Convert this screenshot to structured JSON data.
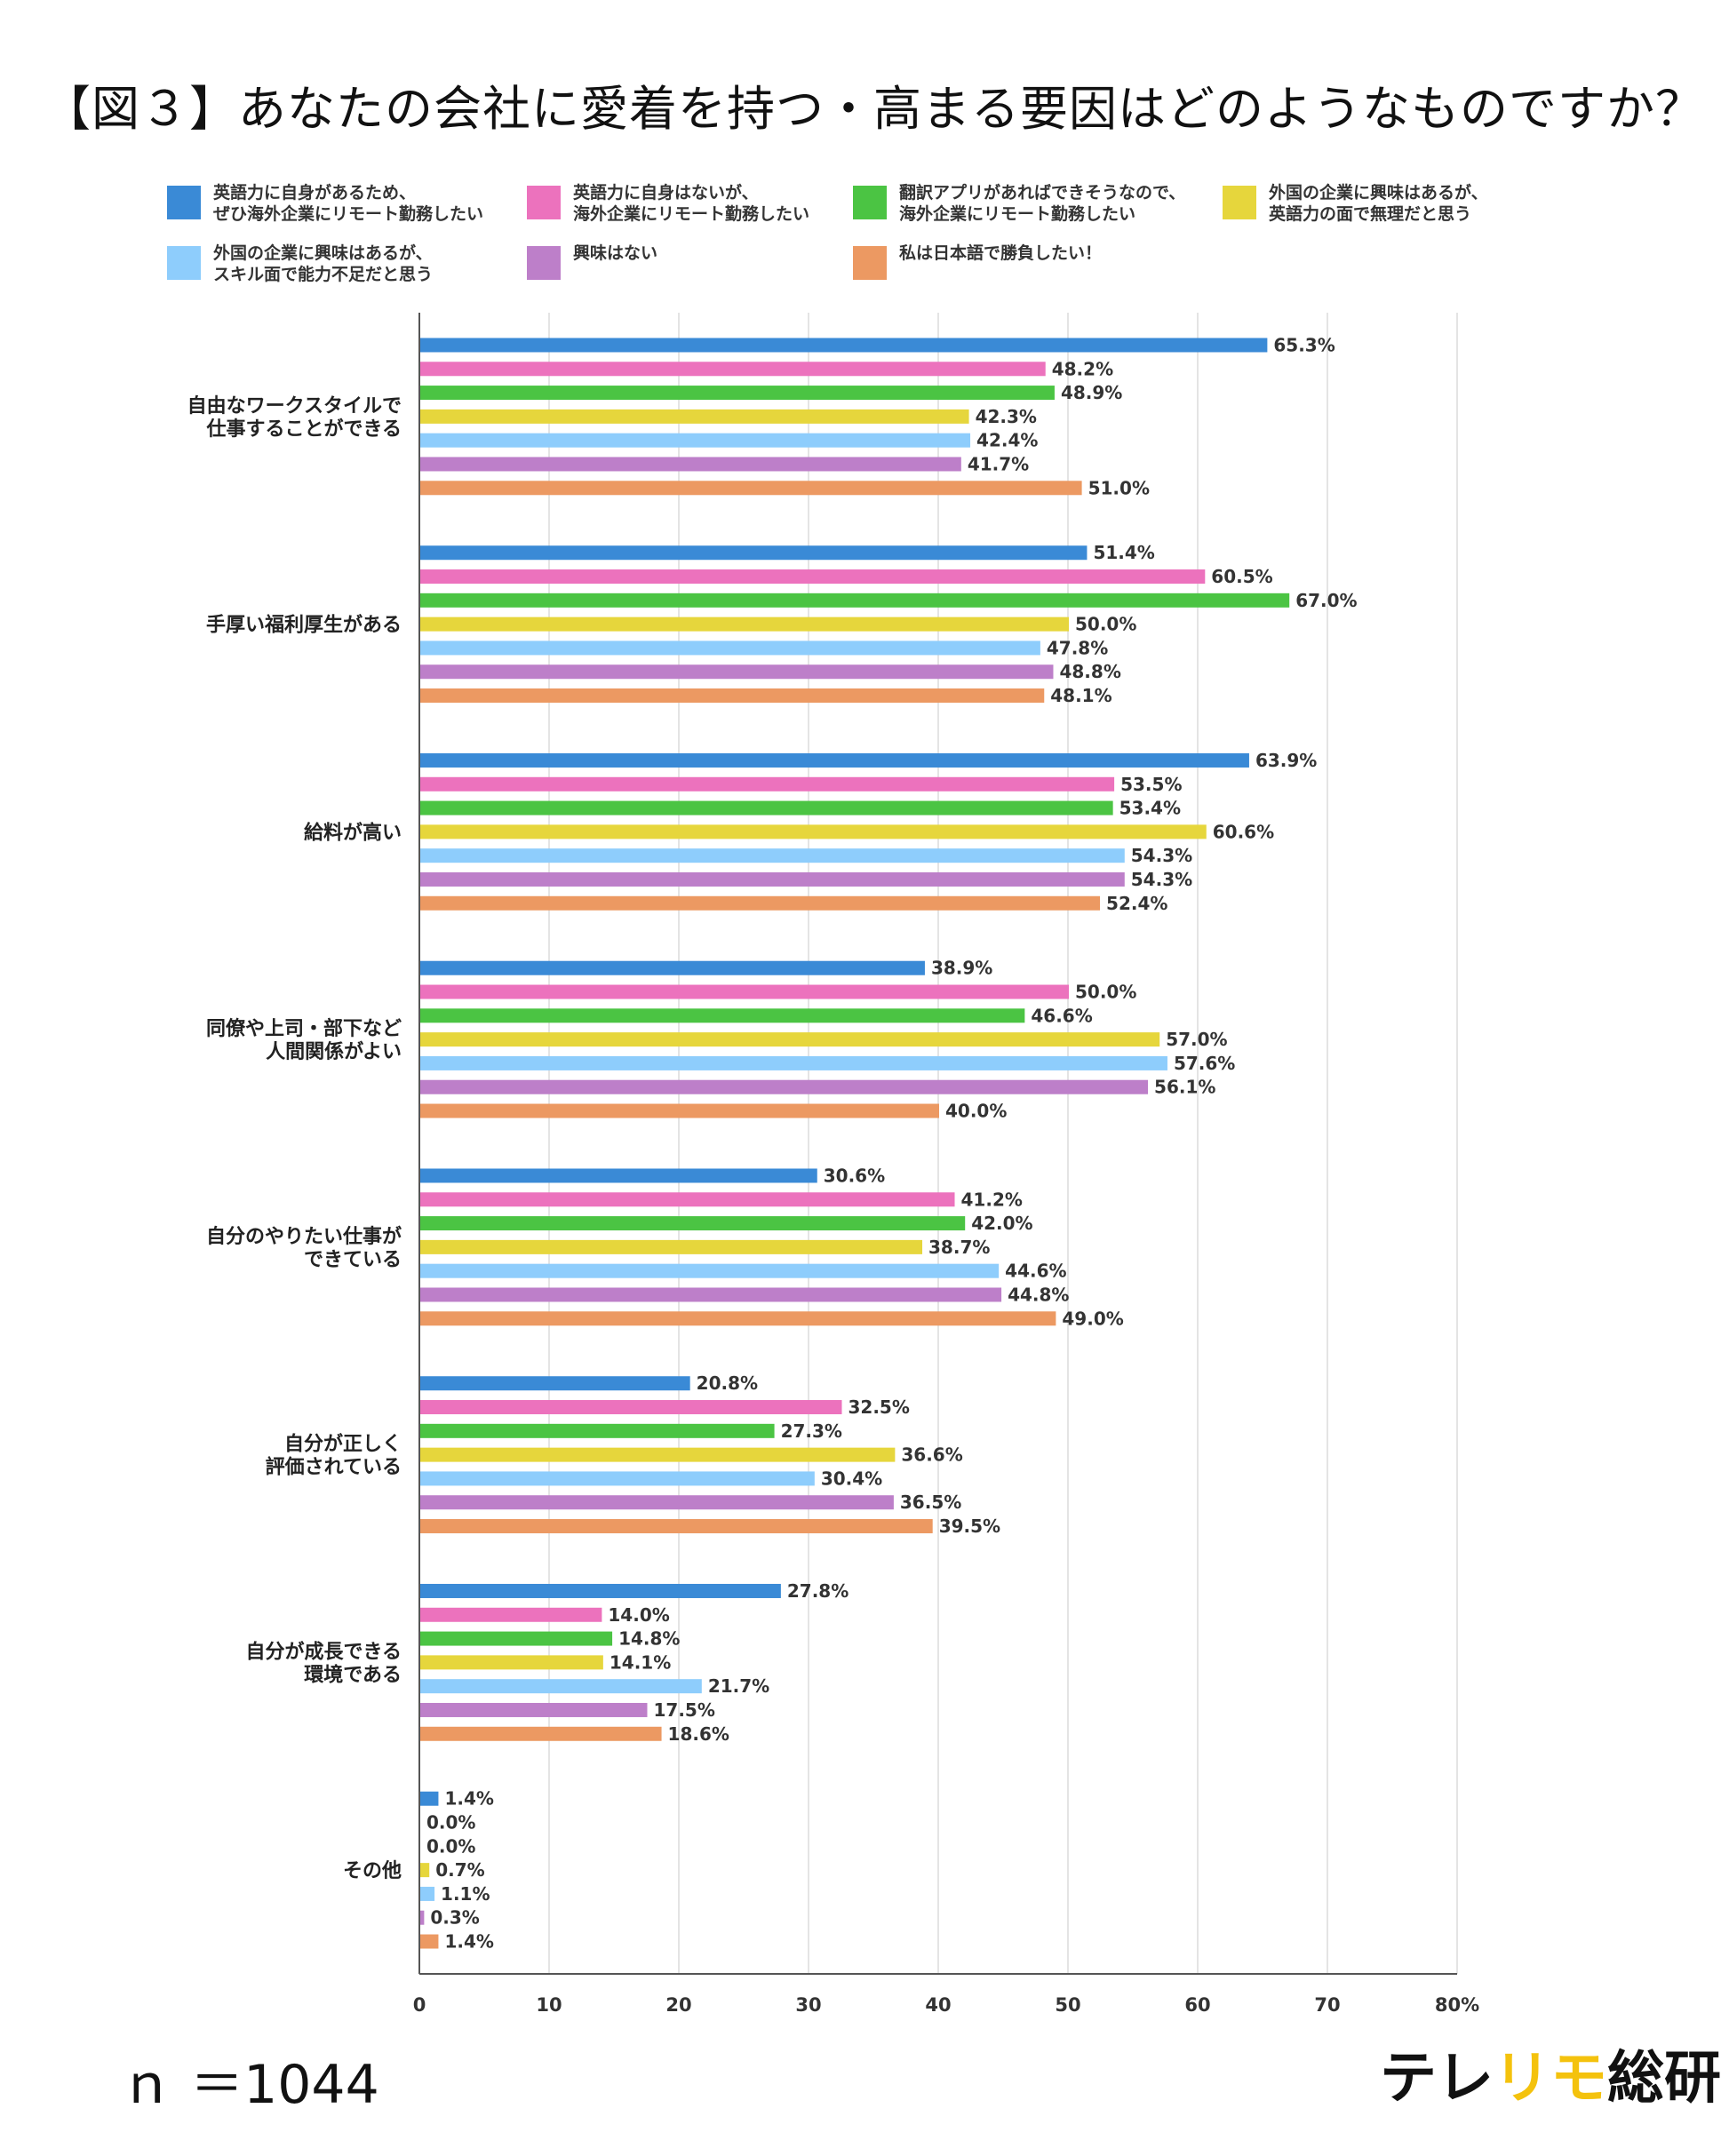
{
  "title": "【図３】あなたの会社に愛着を持つ・高まる要因はどのようなものですか？",
  "sample_size": "ｎ ＝1044",
  "logo": {
    "part1": "テレ",
    "part2": "リモ",
    "part3": "総研"
  },
  "legend": [
    {
      "label": "英語力に自身があるため、\nぜひ海外企業にリモート勤務したい",
      "color": "#3a8ad6"
    },
    {
      "label": "英語力に自身はないが、\n海外企業にリモート勤務したい",
      "color": "#ec72bd"
    },
    {
      "label": "翻訳アプリがあればできそうなので、\n海外企業にリモート勤務したい",
      "color": "#4bc443"
    },
    {
      "label": "外国の企業に興味はあるが、\n英語力の面で無理だと思う",
      "color": "#e6d63c"
    },
    {
      "label": "外国の企業に興味はあるが、\nスキル面で能力不足だと思う",
      "color": "#8ecdfc"
    },
    {
      "label": "興味はない",
      "color": "#bd7fc9"
    },
    {
      "label": "私は日本語で勝負したい！",
      "color": "#ec9962"
    }
  ],
  "chart_data": {
    "type": "bar",
    "orientation": "horizontal",
    "title": "【図３】あなたの会社に愛着を持つ・高まる要因はどのようなものですか？",
    "categories": [
      "自由なワークスタイルで\n仕事することができる",
      "手厚い福利厚生がある",
      "給料が高い",
      "同僚や上司・部下など\n人間関係がよい",
      "自分のやりたい仕事が\nできている",
      "自分が正しく\n評価されている",
      "自分が成長できる\n環境である",
      "その他"
    ],
    "series": [
      {
        "name": "英語力に自身があるため、ぜひ海外企業にリモート勤務したい",
        "values": [
          65.3,
          51.4,
          63.9,
          38.9,
          30.6,
          20.8,
          27.8,
          1.4
        ]
      },
      {
        "name": "英語力に自身はないが、海外企業にリモート勤務したい",
        "values": [
          48.2,
          60.5,
          53.5,
          50.0,
          41.2,
          32.5,
          14.0,
          0.0
        ]
      },
      {
        "name": "翻訳アプリがあればできそうなので、海外企業にリモート勤務したい",
        "values": [
          48.9,
          67.0,
          53.4,
          46.6,
          42.0,
          27.3,
          14.8,
          0.0
        ]
      },
      {
        "name": "外国の企業に興味はあるが、英語力の面で無理だと思う",
        "values": [
          42.3,
          50.0,
          60.6,
          57.0,
          38.7,
          36.6,
          14.1,
          0.7
        ]
      },
      {
        "name": "外国の企業に興味はあるが、スキル面で能力不足だと思う",
        "values": [
          42.4,
          47.8,
          54.3,
          57.6,
          44.6,
          30.4,
          21.7,
          1.1
        ]
      },
      {
        "name": "興味はない",
        "values": [
          41.7,
          48.8,
          54.3,
          56.1,
          44.8,
          36.5,
          17.5,
          0.3
        ]
      },
      {
        "name": "私は日本語で勝負したい！",
        "values": [
          51.0,
          48.1,
          52.4,
          40.0,
          49.0,
          39.5,
          18.6,
          1.4
        ]
      }
    ],
    "xlim": [
      0,
      80
    ],
    "x_ticks": [
      "0",
      "10",
      "20",
      "30",
      "40",
      "50",
      "60",
      "70",
      "80%"
    ],
    "value_suffix": "%",
    "grid": true,
    "legend_position": "top"
  }
}
